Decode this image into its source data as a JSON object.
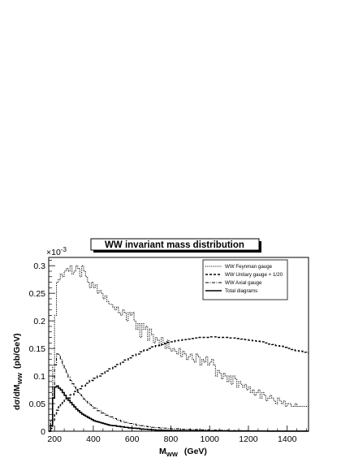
{
  "chart_data": {
    "type": "line",
    "title": "WW invariant mass distribution",
    "xlabel": {
      "main": "M",
      "sub": "WW",
      "unit": "(GeV)"
    },
    "ylabel": {
      "main": "dσ/dM",
      "sub": "WW",
      "unit": "(pb/GeV)"
    },
    "y_multiplier": "×10",
    "y_exponent": "-3",
    "xlim": [
      170,
      1510
    ],
    "ylim": [
      0,
      0.315
    ],
    "xticks": [
      200,
      400,
      600,
      800,
      1000,
      1200,
      1400
    ],
    "xtick_labels": [
      "200",
      "400",
      "600",
      "800",
      "1000",
      "1200",
      "1400"
    ],
    "yticks": [
      0,
      0.05,
      0.1,
      0.15,
      0.2,
      0.25,
      0.3
    ],
    "ytick_labels": [
      "0",
      "0.05",
      "0.1",
      "0.15",
      "0.2",
      "0.25",
      "0.3"
    ],
    "legend_position": "top-right",
    "series": [
      {
        "name": "WW Feynman gauge",
        "style": "dotted",
        "x": [
          170,
          180,
          190,
          200,
          210,
          220,
          230,
          240,
          250,
          260,
          270,
          280,
          290,
          300,
          310,
          320,
          330,
          340,
          350,
          360,
          370,
          380,
          390,
          400,
          410,
          420,
          430,
          440,
          450,
          460,
          470,
          480,
          490,
          500,
          510,
          520,
          530,
          540,
          550,
          560,
          570,
          580,
          590,
          600,
          610,
          620,
          630,
          640,
          650,
          660,
          670,
          680,
          690,
          700,
          710,
          720,
          730,
          740,
          750,
          760,
          770,
          780,
          790,
          800,
          810,
          820,
          830,
          840,
          850,
          860,
          870,
          880,
          890,
          900,
          910,
          920,
          930,
          940,
          950,
          960,
          970,
          980,
          990,
          1000,
          1010,
          1020,
          1030,
          1040,
          1050,
          1060,
          1070,
          1080,
          1090,
          1100,
          1110,
          1120,
          1130,
          1140,
          1150,
          1160,
          1170,
          1180,
          1190,
          1200,
          1210,
          1220,
          1230,
          1240,
          1250,
          1260,
          1270,
          1280,
          1290,
          1300,
          1310,
          1320,
          1330,
          1340,
          1350,
          1360,
          1370,
          1380,
          1390,
          1400,
          1410,
          1420,
          1430,
          1440,
          1450,
          1460,
          1470,
          1480,
          1490,
          1500
        ],
        "values": [
          0,
          0.02,
          0.12,
          0.21,
          0.27,
          0.275,
          0.285,
          0.28,
          0.29,
          0.295,
          0.29,
          0.3,
          0.285,
          0.29,
          0.3,
          0.295,
          0.28,
          0.3,
          0.29,
          0.28,
          0.27,
          0.26,
          0.27,
          0.26,
          0.265,
          0.25,
          0.255,
          0.25,
          0.24,
          0.245,
          0.235,
          0.23,
          0.23,
          0.225,
          0.22,
          0.225,
          0.215,
          0.21,
          0.22,
          0.215,
          0.2,
          0.215,
          0.21,
          0.215,
          0.2,
          0.185,
          0.195,
          0.17,
          0.195,
          0.185,
          0.19,
          0.165,
          0.185,
          0.175,
          0.16,
          0.17,
          0.165,
          0.155,
          0.17,
          0.16,
          0.15,
          0.165,
          0.15,
          0.145,
          0.15,
          0.145,
          0.14,
          0.15,
          0.135,
          0.145,
          0.14,
          0.13,
          0.135,
          0.14,
          0.13,
          0.125,
          0.14,
          0.135,
          0.12,
          0.13,
          0.125,
          0.135,
          0.12,
          0.125,
          0.13,
          0.12,
          0.1,
          0.11,
          0.105,
          0.095,
          0.105,
          0.1,
          0.09,
          0.1,
          0.085,
          0.1,
          0.095,
          0.08,
          0.09,
          0.085,
          0.08,
          0.085,
          0.075,
          0.08,
          0.07,
          0.075,
          0.065,
          0.07,
          0.075,
          0.06,
          0.07,
          0.065,
          0.055,
          0.06,
          0.065,
          0.06,
          0.055,
          0.05,
          0.06,
          0.055,
          0.05,
          0.055,
          0.045,
          0.05,
          0.05,
          0.045,
          0.045,
          0.05,
          0.045,
          0.045,
          0.045,
          0.045,
          0.045,
          0.045
        ]
      },
      {
        "name": "WW Unitary gauge × 1/20",
        "style": "dashed",
        "x": [
          170,
          180,
          190,
          200,
          210,
          220,
          230,
          240,
          250,
          260,
          280,
          300,
          320,
          340,
          360,
          380,
          400,
          420,
          440,
          460,
          480,
          500,
          520,
          540,
          560,
          580,
          600,
          620,
          640,
          660,
          680,
          700,
          720,
          740,
          760,
          780,
          800,
          820,
          840,
          860,
          880,
          900,
          920,
          940,
          960,
          980,
          1000,
          1020,
          1040,
          1060,
          1080,
          1100,
          1120,
          1140,
          1160,
          1180,
          1200,
          1220,
          1240,
          1260,
          1280,
          1300,
          1320,
          1340,
          1360,
          1380,
          1400,
          1420,
          1440,
          1460,
          1480,
          1500
        ],
        "values": [
          0,
          0.005,
          0.018,
          0.03,
          0.038,
          0.044,
          0.048,
          0.052,
          0.056,
          0.06,
          0.066,
          0.072,
          0.077,
          0.082,
          0.087,
          0.092,
          0.096,
          0.1,
          0.104,
          0.109,
          0.113,
          0.117,
          0.121,
          0.125,
          0.129,
          0.133,
          0.137,
          0.14,
          0.144,
          0.147,
          0.15,
          0.153,
          0.155,
          0.157,
          0.159,
          0.161,
          0.162,
          0.164,
          0.165,
          0.166,
          0.167,
          0.168,
          0.169,
          0.17,
          0.17,
          0.17,
          0.171,
          0.171,
          0.17,
          0.17,
          0.17,
          0.169,
          0.169,
          0.168,
          0.167,
          0.166,
          0.165,
          0.164,
          0.163,
          0.162,
          0.16,
          0.158,
          0.157,
          0.155,
          0.154,
          0.152,
          0.15,
          0.148,
          0.146,
          0.145,
          0.143,
          0.142
        ]
      },
      {
        "name": "WW Axial gauge",
        "style": "dashdot",
        "x": [
          170,
          180,
          190,
          200,
          210,
          220,
          230,
          240,
          250,
          260,
          270,
          280,
          290,
          300,
          310,
          320,
          330,
          340,
          350,
          360,
          370,
          380,
          390,
          400,
          420,
          440,
          460,
          480,
          500,
          520,
          540,
          560,
          580,
          600,
          620,
          640,
          660,
          680,
          700,
          720,
          740,
          760,
          780,
          800,
          850,
          900,
          950,
          1000,
          1050,
          1100,
          1150,
          1200,
          1250,
          1300,
          1350,
          1400,
          1450,
          1500
        ],
        "values": [
          0,
          0.02,
          0.08,
          0.12,
          0.14,
          0.138,
          0.13,
          0.12,
          0.113,
          0.105,
          0.098,
          0.092,
          0.086,
          0.08,
          0.075,
          0.07,
          0.066,
          0.062,
          0.058,
          0.054,
          0.051,
          0.048,
          0.045,
          0.042,
          0.037,
          0.033,
          0.029,
          0.026,
          0.023,
          0.02,
          0.018,
          0.016,
          0.014,
          0.013,
          0.011,
          0.01,
          0.009,
          0.008,
          0.007,
          0.0065,
          0.006,
          0.0055,
          0.005,
          0.0045,
          0.0035,
          0.003,
          0.0025,
          0.002,
          0.0015,
          0.0013,
          0.001,
          0.0008,
          0.0006,
          0.0005,
          0.0004,
          0.0003,
          0.0002,
          0.0002
        ]
      },
      {
        "name": "Total diagrams",
        "style": "solid",
        "x": [
          170,
          180,
          190,
          200,
          210,
          220,
          230,
          240,
          250,
          260,
          270,
          280,
          290,
          300,
          310,
          320,
          330,
          340,
          350,
          360,
          370,
          380,
          390,
          400,
          410,
          420,
          430,
          440,
          450,
          460,
          470,
          480,
          490,
          500,
          520,
          540,
          560,
          580,
          600,
          620,
          640,
          660,
          680,
          700,
          720,
          740,
          760,
          780,
          800,
          850,
          900,
          950,
          1000,
          1100,
          1200,
          1300,
          1400,
          1500
        ],
        "values": [
          0,
          0.01,
          0.06,
          0.08,
          0.082,
          0.078,
          0.075,
          0.07,
          0.065,
          0.06,
          0.056,
          0.052,
          0.048,
          0.044,
          0.04,
          0.037,
          0.034,
          0.031,
          0.029,
          0.027,
          0.025,
          0.023,
          0.021,
          0.019,
          0.018,
          0.017,
          0.016,
          0.015,
          0.014,
          0.013,
          0.012,
          0.011,
          0.0105,
          0.01,
          0.009,
          0.008,
          0.007,
          0.006,
          0.0055,
          0.005,
          0.004,
          0.0035,
          0.003,
          0.0025,
          0.002,
          0.0018,
          0.0016,
          0.0014,
          0.0012,
          0.001,
          0.0008,
          0.0006,
          0.0005,
          0.0003,
          0.0002,
          0.0001,
          0.0001,
          0.0001
        ]
      }
    ]
  }
}
